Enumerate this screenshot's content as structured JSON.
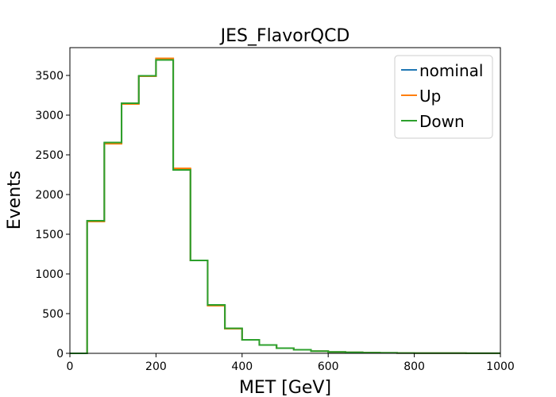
{
  "chart_data": {
    "type": "line",
    "drawstyle": "steps-post",
    "title": "JES_FlavorQCD",
    "xlabel": "MET [GeV]",
    "ylabel": "Events",
    "xlim": [
      0,
      1000
    ],
    "ylim": [
      0,
      3850
    ],
    "xticks": [
      0,
      200,
      400,
      600,
      800,
      1000
    ],
    "xtick_labels": [
      "0",
      "200",
      "400",
      "600",
      "800",
      "1000"
    ],
    "yticks": [
      0,
      500,
      1000,
      1500,
      2000,
      2500,
      3000,
      3500
    ],
    "ytick_labels": [
      "0",
      "500",
      "1000",
      "1500",
      "2000",
      "2500",
      "3000",
      "3500"
    ],
    "grid": false,
    "legend_position": "top-right",
    "bin_edges": [
      0,
      40,
      80,
      120,
      160,
      200,
      240,
      280,
      320,
      360,
      400,
      440,
      480,
      520,
      560,
      600,
      640,
      680,
      720,
      760,
      800,
      840,
      880,
      920,
      960,
      1000
    ],
    "series": [
      {
        "name": "nominal",
        "color": "#1f77b4",
        "values": [
          0,
          1665,
          2650,
          3145,
          3490,
          3705,
          2320,
          1170,
          605,
          310,
          170,
          105,
          65,
          45,
          28,
          18,
          12,
          9,
          6,
          4,
          3,
          2,
          2,
          1,
          1
        ]
      },
      {
        "name": "Up",
        "color": "#ff7f0e",
        "values": [
          0,
          1660,
          2640,
          3140,
          3490,
          3715,
          2330,
          1170,
          600,
          310,
          170,
          105,
          65,
          45,
          28,
          18,
          12,
          9,
          6,
          4,
          3,
          2,
          2,
          1,
          1
        ]
      },
      {
        "name": "Down",
        "color": "#2ca02c",
        "values": [
          0,
          1670,
          2655,
          3150,
          3495,
          3695,
          2310,
          1170,
          610,
          315,
          170,
          105,
          65,
          45,
          28,
          18,
          12,
          9,
          6,
          4,
          3,
          2,
          2,
          1,
          1
        ]
      }
    ]
  }
}
